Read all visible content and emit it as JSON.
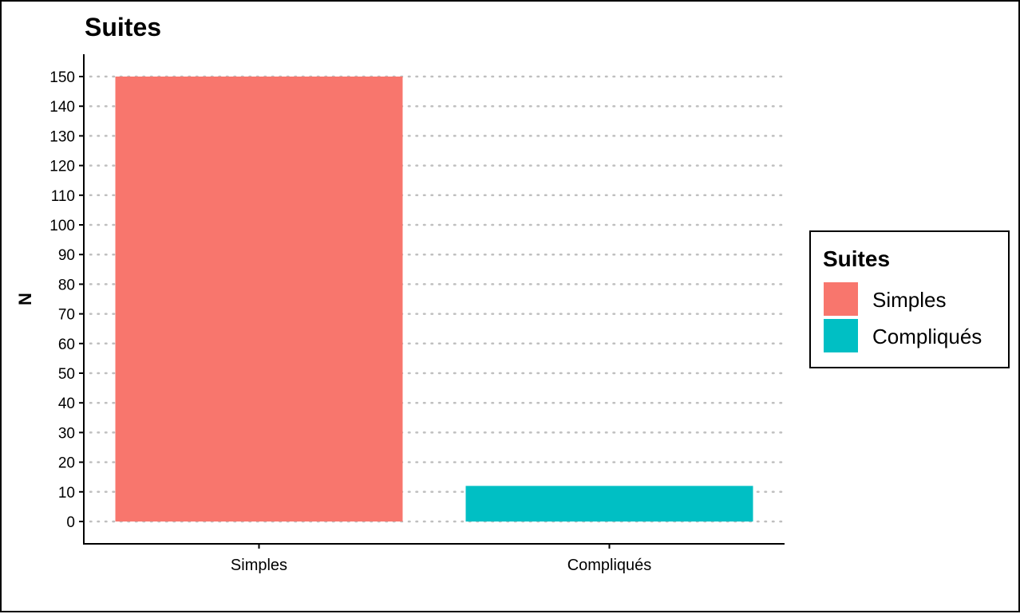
{
  "chart_data": {
    "type": "bar",
    "title": "Suites",
    "xlabel": "",
    "ylabel": "N",
    "categories": [
      "Simples",
      "Compliqués"
    ],
    "values": [
      150,
      12
    ],
    "ylim": [
      0,
      150
    ],
    "yticks": [
      0,
      10,
      20,
      30,
      40,
      50,
      60,
      70,
      80,
      90,
      100,
      110,
      120,
      130,
      140,
      150
    ],
    "grid": "horizontal-dotted",
    "colors": [
      "#F8766D",
      "#00BFC4"
    ],
    "legend": {
      "title": "Suites",
      "position": "right",
      "entries": [
        "Simples",
        "Compliqués"
      ]
    }
  }
}
